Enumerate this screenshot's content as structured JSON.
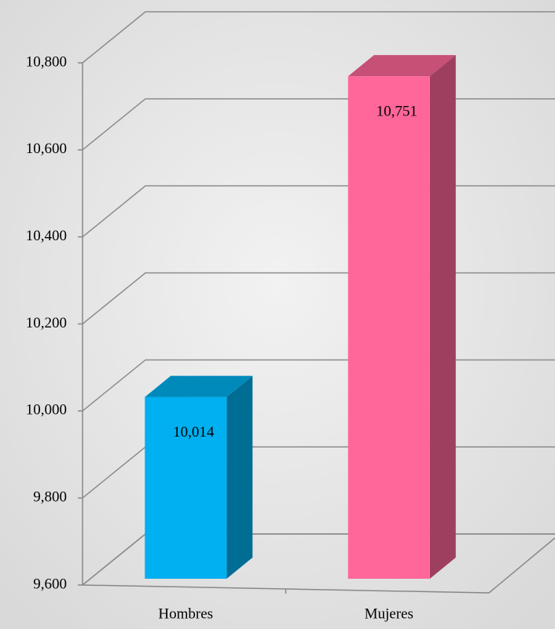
{
  "chart_data": {
    "type": "bar3d",
    "categories": [
      "Hombres",
      "Mujeres"
    ],
    "values": [
      10014,
      10751
    ],
    "value_labels": [
      "10,014",
      "10,751"
    ],
    "colors": [
      "#00b0f0",
      "#ff6699"
    ],
    "ylim": [
      9600,
      10800
    ],
    "yticks": [
      {
        "value": 9600,
        "label": "9,600"
      },
      {
        "value": 9800,
        "label": "9,800"
      },
      {
        "value": 10000,
        "label": "10,000"
      },
      {
        "value": 10200,
        "label": "10,200"
      },
      {
        "value": 10400,
        "label": "10,400"
      },
      {
        "value": 10600,
        "label": "10,600"
      },
      {
        "value": 10800,
        "label": "10,800"
      }
    ],
    "grid": true
  }
}
